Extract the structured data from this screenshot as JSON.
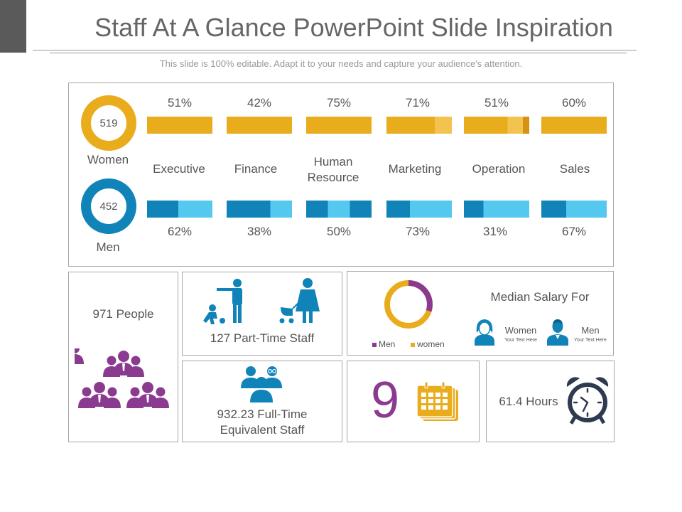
{
  "title": "Staff At A Glance PowerPoint Slide Inspiration",
  "subtitle": "This slide is 100% editable. Adapt it to your needs and capture your audience's attention.",
  "colors": {
    "gold": "#e9ac1c",
    "gold_light": "#f2c34f",
    "blue": "#1083b8",
    "blue_light": "#55c8f0",
    "purple": "#8b3b8f",
    "navy": "#2e3a4f"
  },
  "women": {
    "count": "519",
    "label": "Women"
  },
  "men": {
    "count": "452",
    "label": "Men"
  },
  "departments": [
    {
      "name": "Executive",
      "women_pct": "51%",
      "men_pct": "62%"
    },
    {
      "name": "Finance",
      "women_pct": "42%",
      "men_pct": "38%"
    },
    {
      "name": "Human\nResource",
      "women_pct": "75%",
      "men_pct": "50%"
    },
    {
      "name": "Marketing",
      "women_pct": "71%",
      "men_pct": "73%"
    },
    {
      "name": "Operation",
      "women_pct": "51%",
      "men_pct": "31%"
    },
    {
      "name": "Sales",
      "women_pct": "60%",
      "men_pct": "67%"
    }
  ],
  "people": {
    "label": "971 People",
    "icon": "group-of-people-icon"
  },
  "part_time": {
    "label": "127 Part-Time Staff",
    "icon": "parent-with-children-icon"
  },
  "full_time": {
    "label": "932.23 Full-Time\nEquivalent Staff",
    "icon": "team-icon"
  },
  "salary": {
    "title": "Median Salary For",
    "legend_men": "Men",
    "legend_women": "women",
    "women_label": "Women",
    "men_label": "Men",
    "women_sub": "Your Text Here",
    "men_sub": "Your Text Here"
  },
  "calendar": {
    "value": "9",
    "icon": "calendar-icon"
  },
  "hours": {
    "label": "61.4 Hours",
    "icon": "alarm-clock-icon"
  }
}
